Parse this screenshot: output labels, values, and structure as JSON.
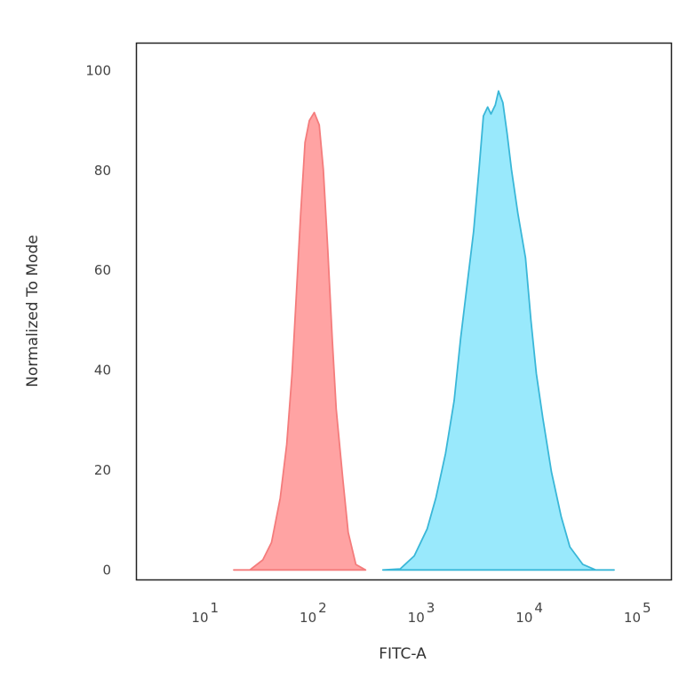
{
  "chart_data": {
    "type": "area",
    "title": "",
    "xlabel": "FITC-A",
    "ylabel": "Normalized To Mode",
    "xscale": "log",
    "xlim": [
      2.24,
      199500
    ],
    "ylim": [
      -2,
      105.5
    ],
    "xticks": [
      {
        "base": "10",
        "exp": "1",
        "value": 10
      },
      {
        "base": "10",
        "exp": "2",
        "value": 100
      },
      {
        "base": "10",
        "exp": "3",
        "value": 1000
      },
      {
        "base": "10",
        "exp": "4",
        "value": 10000
      },
      {
        "base": "10",
        "exp": "5",
        "value": 100000
      }
    ],
    "yticks": [
      0,
      20,
      40,
      60,
      80,
      100
    ],
    "grid": false,
    "series": [
      {
        "color": "#f47c7c",
        "fill": "#ffa3a3",
        "x": [
          17.8,
          25.1,
          33.1,
          39.8,
          47.9,
          55.0,
          61.7,
          67.6,
          74.1,
          81.3,
          89.1,
          98.9,
          110,
          120,
          132,
          145,
          158,
          182,
          204,
          240,
          295
        ],
        "y": [
          0,
          0,
          2.0,
          5.5,
          14.4,
          25.1,
          39.3,
          55.3,
          71.3,
          85.6,
          90.0,
          91.6,
          89.1,
          80.2,
          64.2,
          46.4,
          32.2,
          18.1,
          7.5,
          1.1,
          0
        ]
      },
      {
        "color": "#3ab7d8",
        "fill": "#99e9fc",
        "x": [
          427,
          617,
          832,
          1096,
          1318,
          1622,
          1950,
          2239,
          2570,
          2951,
          3311,
          3631,
          3981,
          4266,
          4677,
          5012,
          5495,
          6026,
          6607,
          7586,
          8913,
          10000,
          11220,
          12880,
          15490,
          19050,
          22910,
          30200,
          39810,
          58880
        ],
        "y": [
          0,
          0.2,
          2.8,
          8.2,
          14.4,
          23.3,
          33.9,
          46.4,
          57.1,
          67.8,
          80.2,
          90.9,
          92.7,
          91.3,
          93.1,
          95.9,
          93.6,
          87.4,
          80.2,
          71.3,
          62.5,
          50.0,
          39.3,
          30.4,
          19.6,
          10.7,
          4.6,
          1.1,
          0,
          0
        ]
      }
    ]
  }
}
